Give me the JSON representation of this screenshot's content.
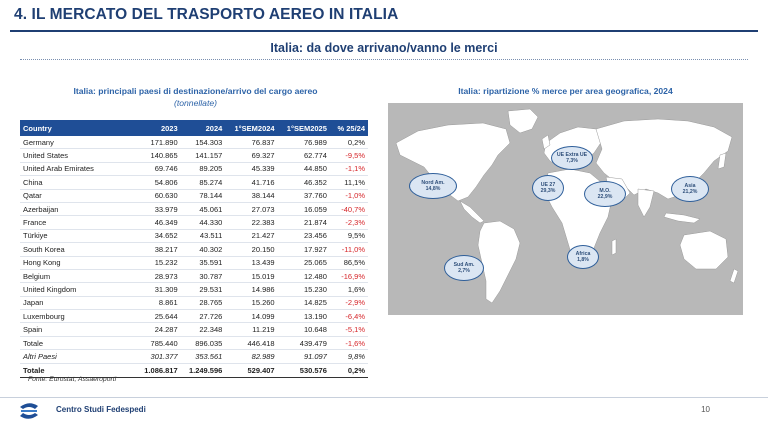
{
  "header": {
    "title": "4.  IL MERCATO DEL TRASPORTO AEREO IN ITALIA",
    "subtitle": "Italia: da dove arrivano/vanno le merci"
  },
  "table_section": {
    "caption": "Italia: principali paesi di destinazione/arrivo del cargo aereo",
    "unit": "(tonnellate)",
    "columns": [
      "Country",
      "2023",
      "2024",
      "1°SEM2024",
      "1°SEM2025",
      "% 25/24"
    ],
    "rows": [
      {
        "country": "Germany",
        "y2023": "171.890",
        "y2024": "154.303",
        "s2024": "76.837",
        "s2025": "76.989",
        "pct": "0,2%",
        "neg": false
      },
      {
        "country": "United States",
        "y2023": "140.865",
        "y2024": "141.157",
        "s2024": "69.327",
        "s2025": "62.774",
        "pct": "-9,5%",
        "neg": true
      },
      {
        "country": "United Arab Emirates",
        "y2023": "69.746",
        "y2024": "89.205",
        "s2024": "45.339",
        "s2025": "44.850",
        "pct": "-1,1%",
        "neg": true
      },
      {
        "country": "China",
        "y2023": "54.806",
        "y2024": "85.274",
        "s2024": "41.716",
        "s2025": "46.352",
        "pct": "11,1%",
        "neg": false
      },
      {
        "country": "Qatar",
        "y2023": "60.630",
        "y2024": "78.144",
        "s2024": "38.144",
        "s2025": "37.760",
        "pct": "-1,0%",
        "neg": true
      },
      {
        "country": "Azerbaijan",
        "y2023": "33.979",
        "y2024": "45.061",
        "s2024": "27.073",
        "s2025": "16.059",
        "pct": "-40,7%",
        "neg": true
      },
      {
        "country": "France",
        "y2023": "46.349",
        "y2024": "44.330",
        "s2024": "22.383",
        "s2025": "21.874",
        "pct": "-2,3%",
        "neg": true
      },
      {
        "country": "Türkiye",
        "y2023": "34.652",
        "y2024": "43.511",
        "s2024": "21.427",
        "s2025": "23.456",
        "pct": "9,5%",
        "neg": false
      },
      {
        "country": "South Korea",
        "y2023": "38.217",
        "y2024": "40.302",
        "s2024": "20.150",
        "s2025": "17.927",
        "pct": "-11,0%",
        "neg": true
      },
      {
        "country": "Hong Kong",
        "y2023": "15.232",
        "y2024": "35.591",
        "s2024": "13.439",
        "s2025": "25.065",
        "pct": "86,5%",
        "neg": false
      },
      {
        "country": "Belgium",
        "y2023": "28.973",
        "y2024": "30.787",
        "s2024": "15.019",
        "s2025": "12.480",
        "pct": "-16,9%",
        "neg": true
      },
      {
        "country": "United Kingdom",
        "y2023": "31.309",
        "y2024": "29.531",
        "s2024": "14.986",
        "s2025": "15.230",
        "pct": "1,6%",
        "neg": false
      },
      {
        "country": "Japan",
        "y2023": "8.861",
        "y2024": "28.765",
        "s2024": "15.260",
        "s2025": "14.825",
        "pct": "-2,9%",
        "neg": true
      },
      {
        "country": "Luxembourg",
        "y2023": "25.644",
        "y2024": "27.726",
        "s2024": "14.099",
        "s2025": "13.190",
        "pct": "-6,4%",
        "neg": true
      },
      {
        "country": "Spain",
        "y2023": "24.287",
        "y2024": "22.348",
        "s2024": "11.219",
        "s2025": "10.648",
        "pct": "-5,1%",
        "neg": true
      },
      {
        "country": "Totale",
        "y2023": "785.440",
        "y2024": "896.035",
        "s2024": "446.418",
        "s2025": "439.479",
        "pct": "-1,6%",
        "neg": true
      },
      {
        "country": "Altri Paesi",
        "y2023": "301.377",
        "y2024": "353.561",
        "s2024": "82.989",
        "s2025": "91.097",
        "pct": "9,8%",
        "neg": false,
        "italic": true
      }
    ],
    "total_row": {
      "country": "Totale",
      "y2023": "1.086.817",
      "y2024": "1.249.596",
      "s2024": "529.407",
      "s2025": "530.576",
      "pct": "0,2%"
    },
    "source": "Fonte: Eurostat, Assaeroporti"
  },
  "map_section": {
    "caption": "Italia: ripartizione % merce per area geografica, 2024",
    "regions": [
      {
        "name": "Nord Am.",
        "pct": "14,8%"
      },
      {
        "name": "UE Extra UE",
        "pct": "7,3%"
      },
      {
        "name": "UE 27",
        "pct": "29,3%"
      },
      {
        "name": "M.O.",
        "pct": "22,9%"
      },
      {
        "name": "Asia",
        "pct": "21,2%"
      },
      {
        "name": "Africa",
        "pct": "1,8%"
      },
      {
        "name": "Sud Am.",
        "pct": "2,7%"
      }
    ],
    "map_colors": {
      "land": "#ffffff",
      "sea": "#b8b8b8",
      "bubble_fill": "#dbe6f3",
      "bubble_border": "#2f5f9a"
    }
  },
  "footer": {
    "org": "Centro Studi Fedespedi",
    "page": "10"
  }
}
